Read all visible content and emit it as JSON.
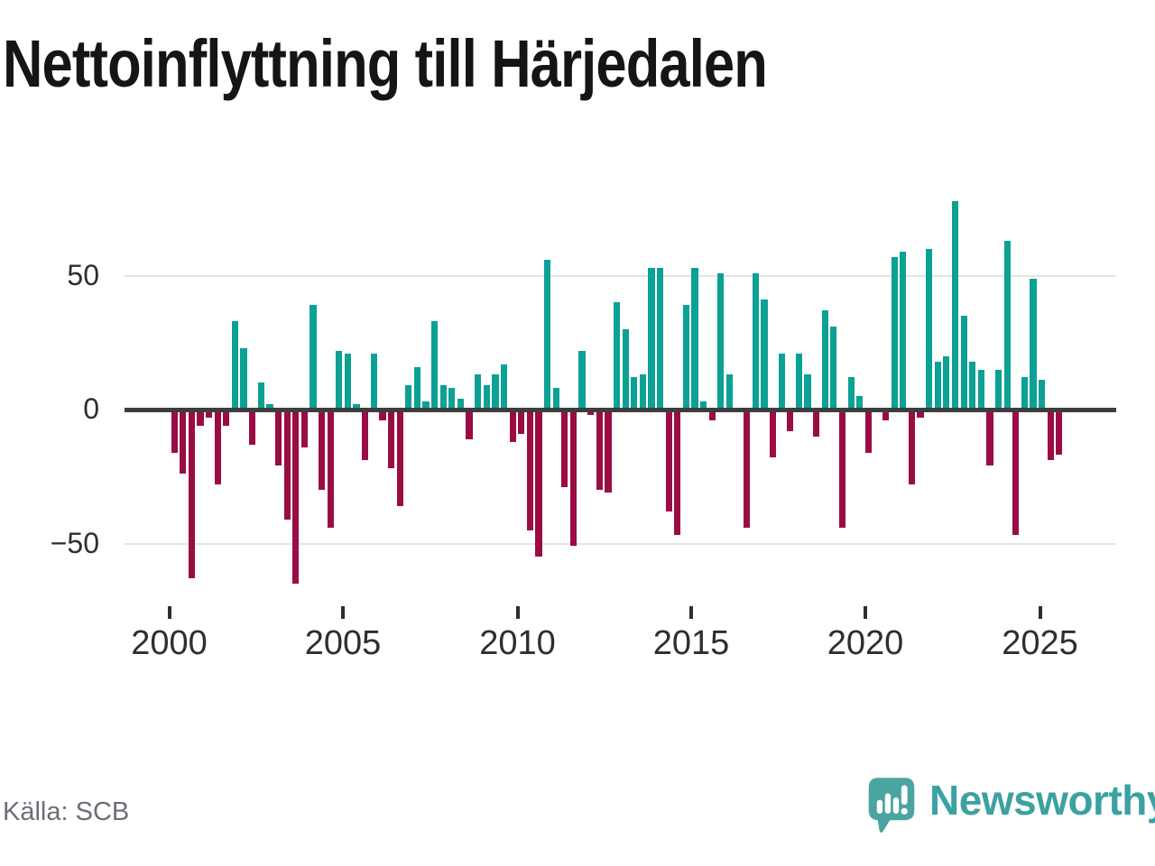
{
  "title": "Nettoinflyttning till Härjedalen",
  "source": "Källa: SCB",
  "brand": {
    "name": "Newsworthy"
  },
  "colors": {
    "positive": "#0ba195",
    "negative": "#9a0c44",
    "zero_line": "#3d3d3d",
    "gridline": "#e4e4e4",
    "axis_text": "#2e2e2e",
    "logo": "#3ba1a1",
    "logo_icon": "#4ba4a1"
  },
  "chart_data": {
    "type": "bar",
    "title": "Nettoinflyttning till Härjedalen",
    "frequency": "quarterly",
    "start_period": "2000Q1",
    "end_period": "2025Q3",
    "x_tick_labels": [
      "2000",
      "2005",
      "2010",
      "2015",
      "2020",
      "2025"
    ],
    "y_tick_labels": [
      "50",
      "0",
      "−50"
    ],
    "y_tick_values": [
      50,
      0,
      -50
    ],
    "ylim": [
      -70,
      85
    ],
    "grid": "horizontal-only",
    "legend": "none",
    "positive_color": "#0ba195",
    "negative_color": "#9a0c44",
    "values": [
      -16,
      -24,
      -63,
      -6,
      -3,
      -28,
      -6,
      33,
      23,
      -13,
      10,
      2,
      -21,
      -41,
      -65,
      -14,
      39,
      -30,
      -44,
      22,
      21,
      2,
      -19,
      21,
      -4,
      -22,
      -36,
      9,
      16,
      3,
      33,
      9,
      8,
      4,
      -11,
      13,
      9,
      13,
      17,
      -12,
      -9,
      -45,
      -55,
      56,
      8,
      -29,
      -51,
      22,
      -2,
      -30,
      -31,
      40,
      30,
      12,
      13,
      53,
      53,
      -38,
      -47,
      39,
      53,
      3,
      -4,
      51,
      13,
      0,
      -44,
      51,
      41,
      -18,
      21,
      -8,
      21,
      13,
      -10,
      37,
      31,
      -44,
      12,
      5,
      -16,
      0,
      -4,
      57,
      59,
      -28,
      -3,
      60,
      18,
      20,
      78,
      35,
      18,
      15,
      -21,
      15,
      63,
      -47,
      12,
      49,
      11,
      -19,
      -17
    ]
  }
}
